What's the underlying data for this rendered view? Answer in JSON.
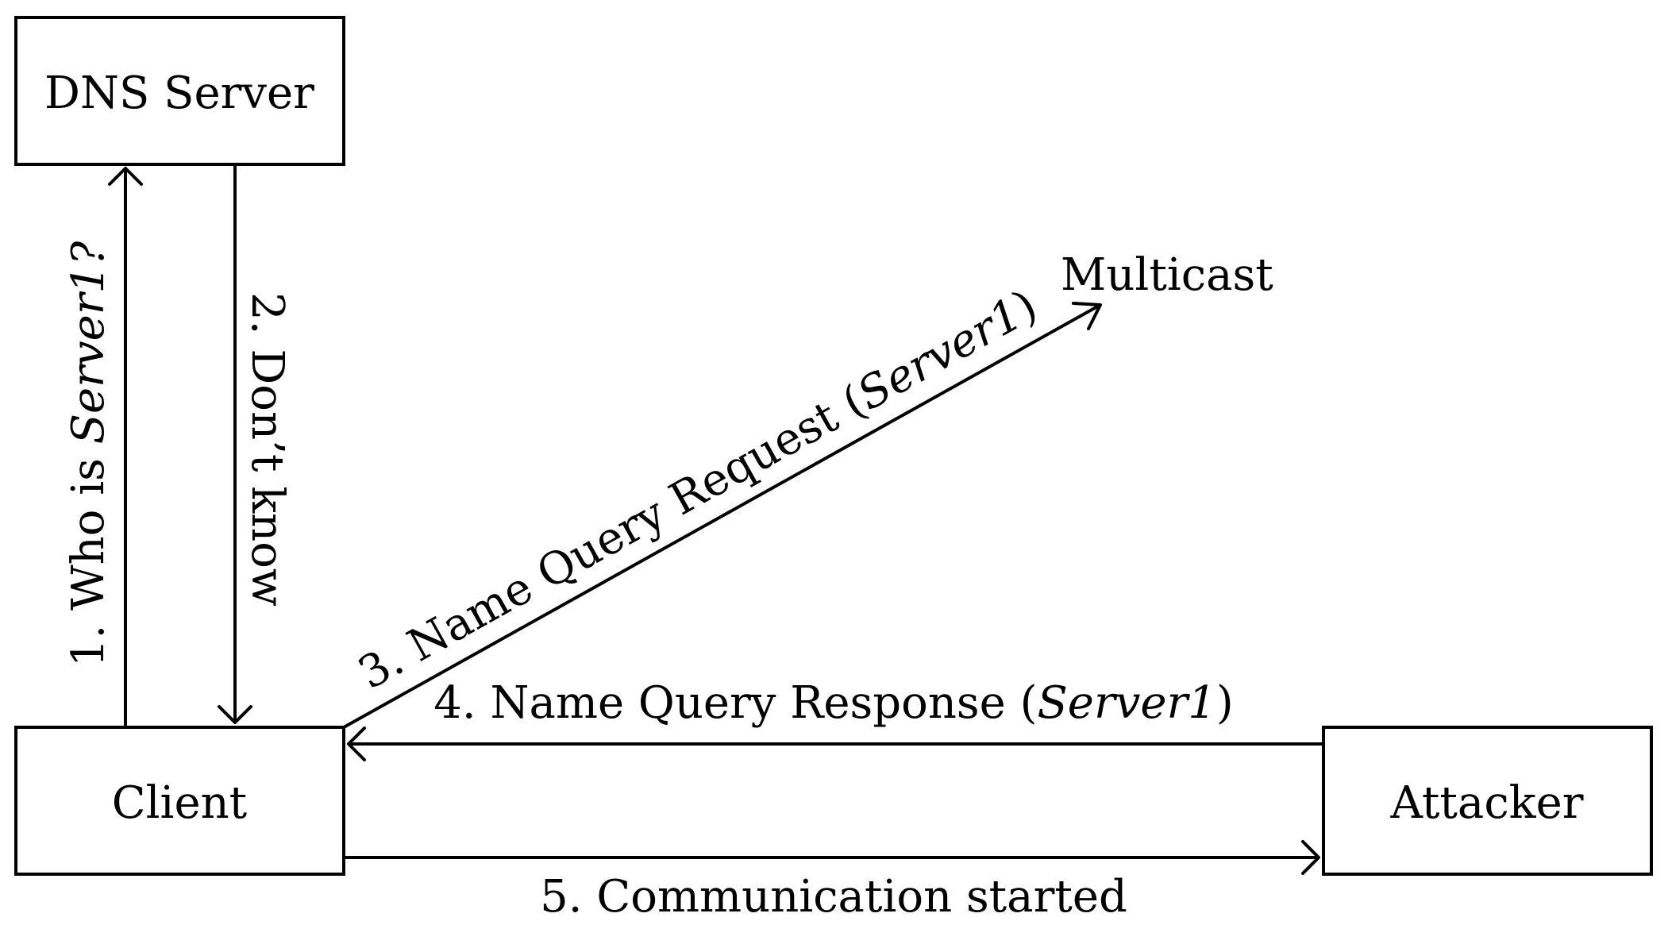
{
  "nodes": {
    "dns_server": "DNS Server",
    "client": "Client",
    "attacker": "Attacker",
    "multicast": "Multicast"
  },
  "edges": {
    "e1": {
      "prefix": "1. Who is ",
      "name": "Server1",
      "suffix": "?"
    },
    "e2": {
      "text": "2. Don’t know"
    },
    "e3": {
      "prefix": "3. Name Query Request (",
      "name": "Server1",
      "suffix": ")"
    },
    "e4": {
      "prefix": "4. Name Query Response (",
      "name": "Server1",
      "suffix": ")"
    },
    "e5": {
      "text": "5. Communication started"
    }
  }
}
